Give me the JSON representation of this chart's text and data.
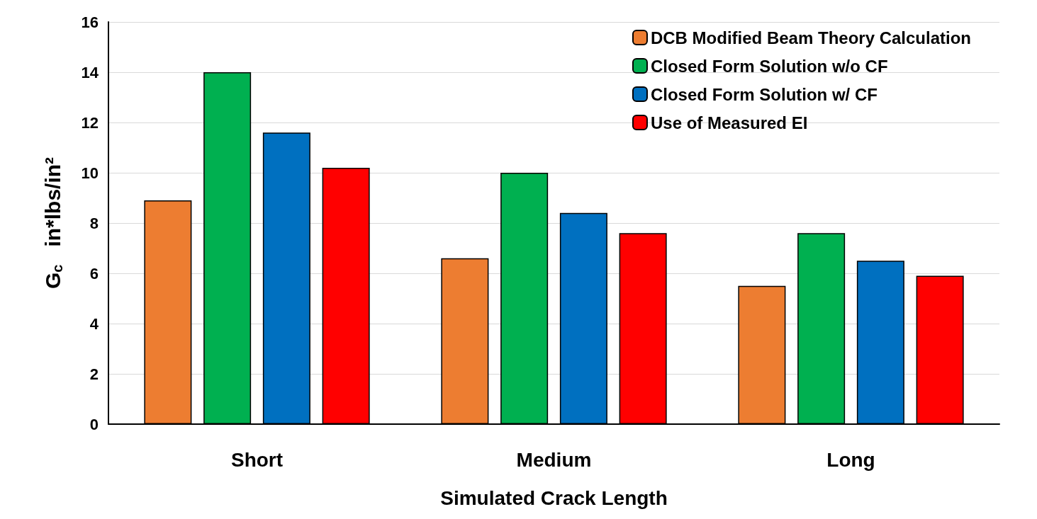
{
  "chart_data": {
    "type": "bar",
    "xlabel": "Simulated Crack Length",
    "ylabel": "G$_{c}$   in*lbs/in²",
    "categories": [
      "Short",
      "Medium",
      "Long"
    ],
    "series": [
      {
        "name": "DCB Modified Beam Theory Calculation",
        "color": "#ed7d31",
        "values": [
          8.9,
          6.6,
          5.5
        ]
      },
      {
        "name": "Closed Form Solution w/o CF",
        "color": "#00b050",
        "values": [
          14.0,
          10.0,
          7.6
        ]
      },
      {
        "name": "Closed Form Solution w/ CF",
        "color": "#0070c0",
        "values": [
          11.6,
          8.4,
          6.5
        ]
      },
      {
        "name": "Use of Measured EI",
        "color": "#ff0000",
        "values": [
          10.2,
          7.6,
          5.9
        ]
      }
    ],
    "ylim": [
      0,
      16
    ],
    "yticks": [
      0,
      2,
      4,
      6,
      8,
      10,
      12,
      14,
      16
    ],
    "grid": "y",
    "legend": "top right"
  }
}
